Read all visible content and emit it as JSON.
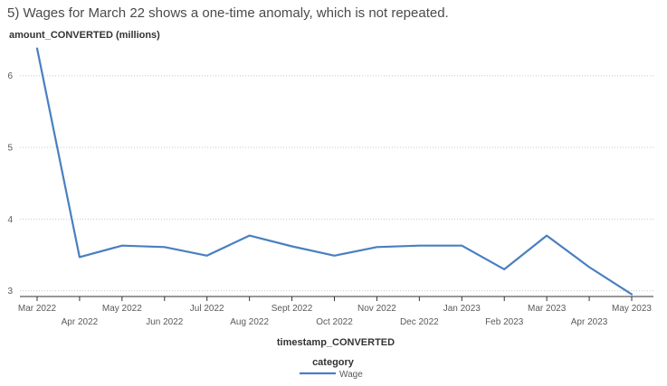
{
  "title": "5) Wages for March 22 shows a one-time anomaly, which is not repeated.",
  "colors": {
    "series": "#4a7fc1",
    "grid": "#c8c8c8",
    "axis": "#333333",
    "text": "#5a5a5a"
  },
  "chart_data": {
    "type": "line",
    "xlabel": "timestamp_CONVERTED",
    "ylabel": "amount_CONVERTED (millions)",
    "ylim": [
      2.92,
      6.45
    ],
    "yticks": [
      3,
      4,
      5,
      6
    ],
    "grid": "horizontal dotted",
    "categories": [
      "Mar 2022",
      "Apr 2022",
      "May 2022",
      "Jun 2022",
      "Jul 2022",
      "Aug 2022",
      "Sept 2022",
      "Oct 2022",
      "Nov 2022",
      "Dec 2022",
      "Jan 2023",
      "Feb 2023",
      "Mar 2023",
      "Apr 2023",
      "May 2023"
    ],
    "series": [
      {
        "name": "Wage",
        "values": [
          6.38,
          3.47,
          3.63,
          3.61,
          3.49,
          3.77,
          3.62,
          3.49,
          3.61,
          3.63,
          3.63,
          3.3,
          3.77,
          3.33,
          2.95
        ]
      }
    ],
    "legend": {
      "title": "category",
      "position": "bottom-center"
    }
  }
}
